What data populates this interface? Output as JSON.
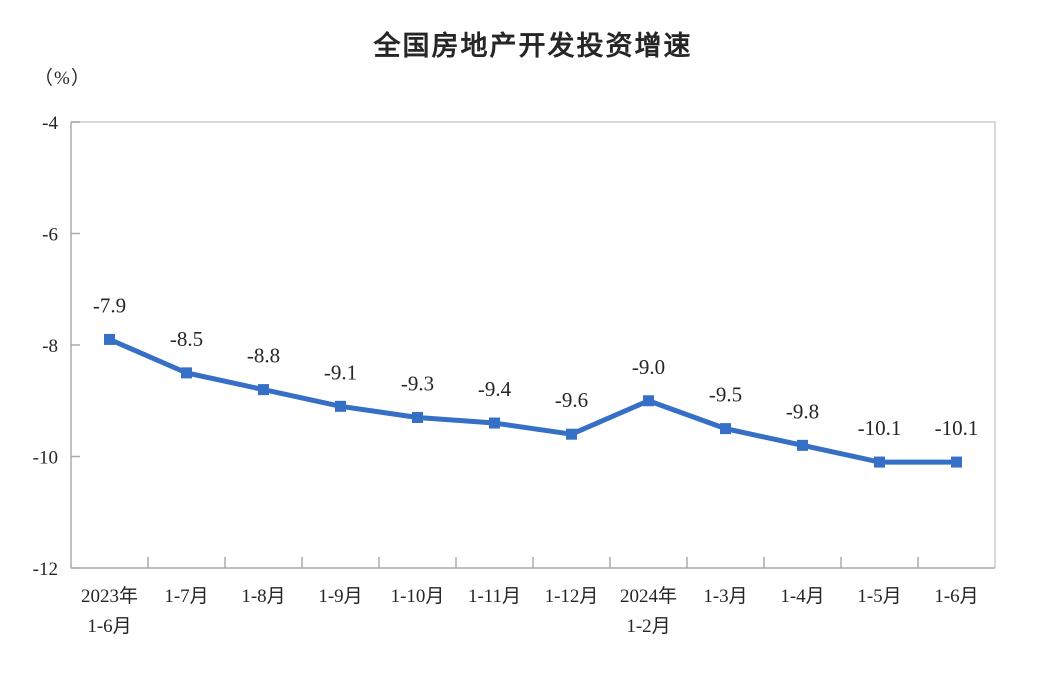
{
  "chart_data": {
    "type": "line",
    "title": "全国房地产开发投资增速",
    "unit_label": "（%）",
    "categories": [
      [
        "2023年",
        "1-6月"
      ],
      [
        "1-7月"
      ],
      [
        "1-8月"
      ],
      [
        "1-9月"
      ],
      [
        "1-10月"
      ],
      [
        "1-11月"
      ],
      [
        "1-12月"
      ],
      [
        "2024年",
        "1-2月"
      ],
      [
        "1-3月"
      ],
      [
        "1-4月"
      ],
      [
        "1-5月"
      ],
      [
        "1-6月"
      ]
    ],
    "values": [
      -7.9,
      -8.5,
      -8.8,
      -9.1,
      -9.3,
      -9.4,
      -9.6,
      -9.0,
      -9.5,
      -9.8,
      -10.1,
      -10.1
    ],
    "data_labels": [
      "-7.9",
      "-8.5",
      "-8.8",
      "-9.1",
      "-9.3",
      "-9.4",
      "-9.6",
      "-9.0",
      "-9.5",
      "-9.8",
      "-10.1",
      "-10.1"
    ],
    "y_ticks": [
      "-4",
      "-6",
      "-8",
      "-10",
      "-12"
    ],
    "ylim": [
      -12,
      -4
    ],
    "grid": false,
    "legend": "none",
    "colors": {
      "line": "#356FC6",
      "marker": "#356FC6",
      "label_text": "#262626",
      "title_text": "#262626",
      "axis_line": "#ABABAB",
      "plot_border": "#D9D9D9"
    }
  }
}
